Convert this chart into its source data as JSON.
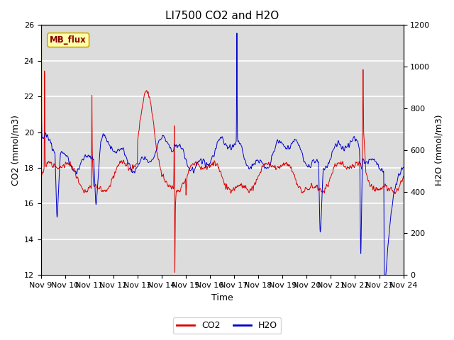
{
  "title": "LI7500 CO2 and H2O",
  "xlabel": "Time",
  "ylabel_left": "CO2 (mmol/m3)",
  "ylabel_right": "H2O (mmol/m3)",
  "ylim_left": [
    12,
    26
  ],
  "ylim_right": [
    0,
    1200
  ],
  "yticks_left": [
    12,
    14,
    16,
    18,
    20,
    22,
    24,
    26
  ],
  "yticks_right": [
    0,
    200,
    400,
    600,
    800,
    1000,
    1200
  ],
  "n_points": 4320,
  "co2_color": "#DD0000",
  "h2o_color": "#0000CC",
  "bg_color": "#DCDCDC",
  "annotation_text": "MB_flux",
  "annotation_color": "#880000",
  "annotation_bg": "#FFFFAA",
  "annotation_edge": "#CCAA00",
  "grid_color": "white",
  "title_fontsize": 11,
  "label_fontsize": 9,
  "tick_fontsize": 8,
  "legend_fontsize": 9
}
